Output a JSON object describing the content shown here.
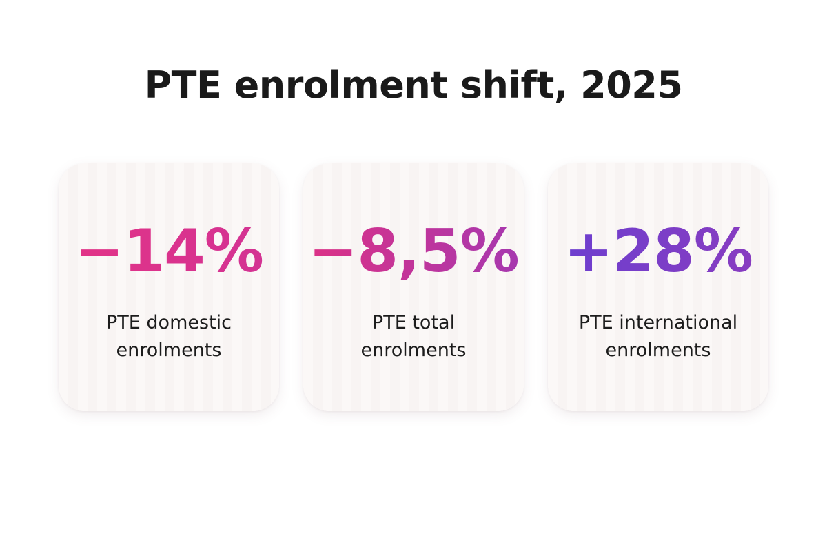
{
  "header": {
    "title": "PTE enrolment shift, 2025"
  },
  "cards": [
    {
      "value": "−14%",
      "label": "PTE domestic enrolments"
    },
    {
      "value": "−8,5%",
      "label": "PTE total enrolments"
    },
    {
      "value": "+28%",
      "label": "PTE international enrolments"
    }
  ]
}
